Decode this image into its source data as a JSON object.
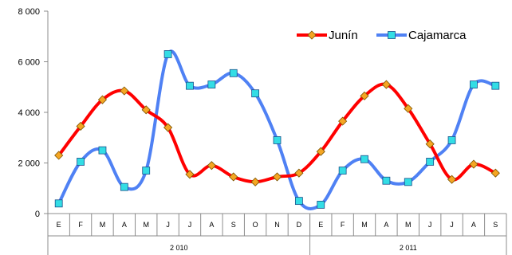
{
  "chart_data": {
    "type": "line",
    "smooth": true,
    "grid": false,
    "legend_position": "top-right",
    "ylim": [
      0,
      8000
    ],
    "y_ticks": [
      "0",
      "2 000",
      "4 000",
      "6 000",
      "8 000"
    ],
    "y_tick_values": [
      0,
      2000,
      4000,
      6000,
      8000
    ],
    "categories": [
      "E",
      "F",
      "M",
      "A",
      "M",
      "J",
      "J",
      "A",
      "S",
      "O",
      "N",
      "D",
      "E",
      "F",
      "M",
      "A",
      "M",
      "J",
      "J",
      "A",
      "S"
    ],
    "groups": [
      {
        "label": "2 010",
        "count": 12
      },
      {
        "label": "2 011",
        "count": 9
      }
    ],
    "series": [
      {
        "name": "Junín",
        "color": "#ff0000",
        "marker": "diamond",
        "marker_color": "#f5a623",
        "values": [
          2300,
          3450,
          4500,
          4850,
          4100,
          3400,
          1550,
          1900,
          1450,
          1250,
          1450,
          1600,
          2450,
          3650,
          4650,
          5100,
          4150,
          2750,
          1350,
          1950,
          1600
        ]
      },
      {
        "name": "Cajamarca",
        "color": "#4f81f4",
        "marker": "square",
        "marker_color": "#33dde5",
        "values": [
          400,
          2050,
          2500,
          1050,
          1700,
          6300,
          5050,
          5100,
          5550,
          4750,
          2900,
          500,
          350,
          1700,
          2150,
          1300,
          1250,
          2050,
          2900,
          5100,
          5050
        ]
      }
    ]
  }
}
